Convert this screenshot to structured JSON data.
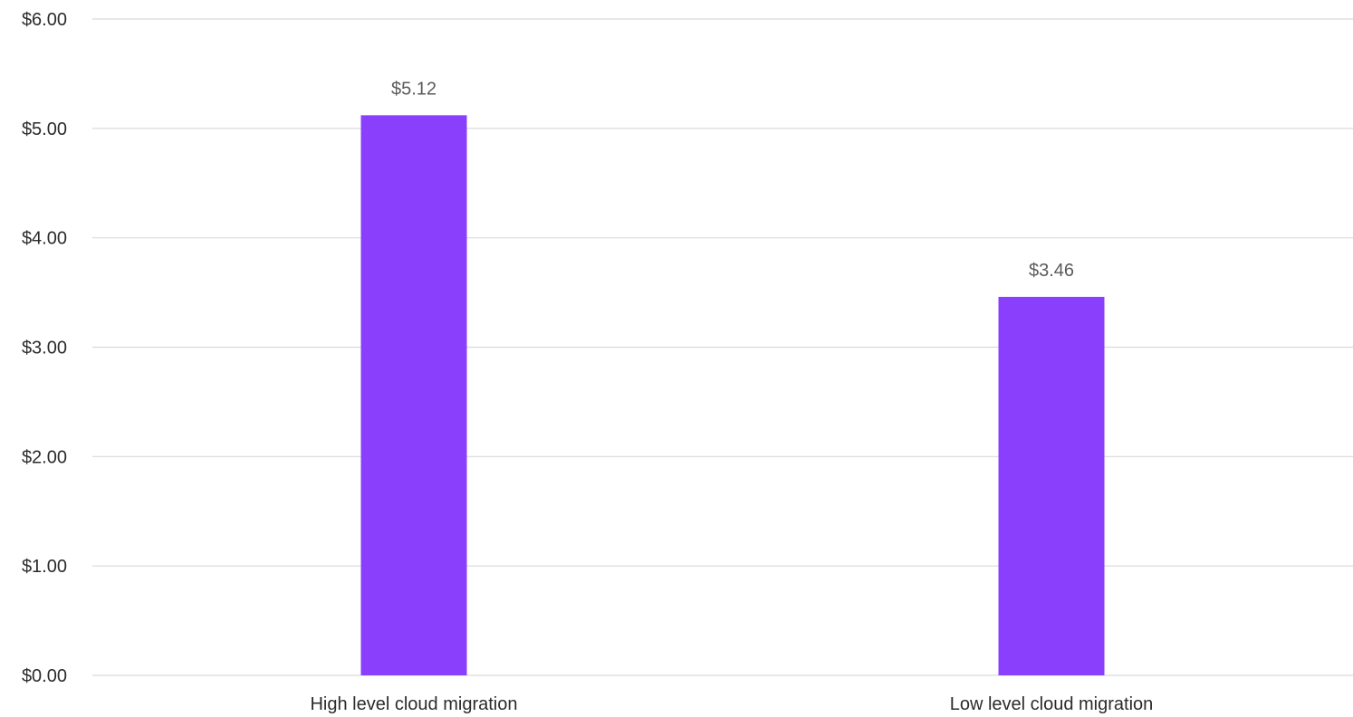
{
  "chart_data": {
    "type": "bar",
    "categories": [
      "High level cloud migration",
      "Low level cloud migration"
    ],
    "values": [
      5.12,
      3.46
    ],
    "data_labels": [
      "$5.12",
      "$3.46"
    ],
    "ylim": [
      0,
      6
    ],
    "y_ticks": [
      0,
      1,
      2,
      3,
      4,
      5,
      6
    ],
    "y_tick_labels": [
      "$0.00",
      "$1.00",
      "$2.00",
      "$3.00",
      "$4.00",
      "$5.00",
      "$6.00"
    ],
    "title": "",
    "xlabel": "",
    "ylabel": "",
    "grid": true,
    "legend": "none",
    "colors": {
      "bar": "#8a3ffc",
      "grid": "#d9d9d9",
      "text": "#2b2b2b",
      "data_label": "#5a5a5a"
    }
  }
}
